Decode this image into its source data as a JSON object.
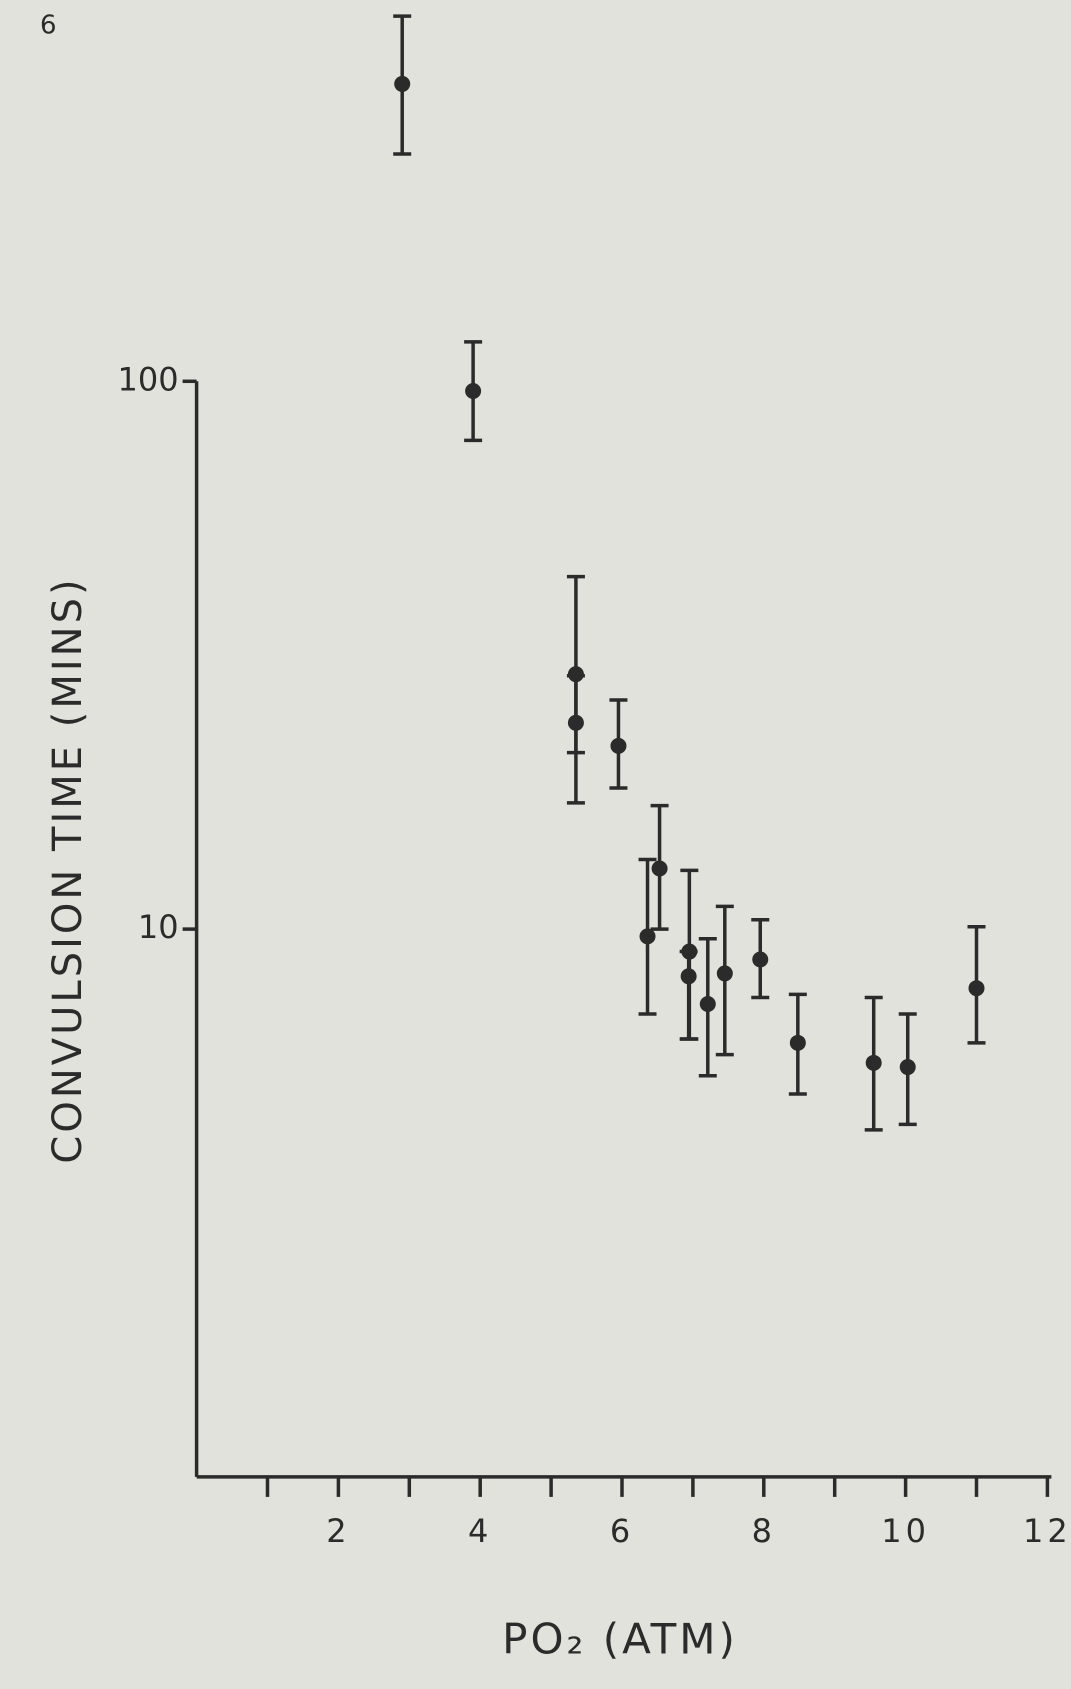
{
  "page_number": "6",
  "chart_data": {
    "type": "errorbar-scatter",
    "ylabel": "CONVULSION TIME (MINS)",
    "xlabel": "PO₂ (ATM)",
    "x": [
      2.9,
      3.9,
      5.35,
      5.35,
      5.95,
      6.36,
      6.53,
      6.95,
      6.94,
      7.21,
      7.45,
      7.95,
      8.48,
      9.55,
      10.03,
      11.0
    ],
    "values": [
      349,
      96,
      29.2,
      23.8,
      21.6,
      9.7,
      12.9,
      9.1,
      8.2,
      7.3,
      8.3,
      8.8,
      6.2,
      5.7,
      5.6,
      7.8
    ],
    "err_low": [
      260,
      78,
      21,
      17,
      18.1,
      7.0,
      10,
      6.3,
      6.3,
      5.4,
      5.9,
      7.5,
      5.0,
      4.3,
      4.4,
      6.2
    ],
    "err_high": [
      464,
      118,
      44,
      29,
      26.2,
      13.4,
      16.8,
      12.8,
      9.1,
      9.6,
      11.0,
      10.4,
      7.6,
      7.5,
      7.0,
      10.1
    ],
    "color": "#2b2b2b",
    "log_y": true,
    "xlim": [
      0,
      12
    ],
    "ylim": [
      1,
      500
    ],
    "xticks": [
      2,
      4,
      6,
      8,
      10,
      12
    ],
    "xminor_ticks": [
      1,
      3,
      5,
      7,
      9,
      11
    ],
    "yticks": [
      10,
      100
    ]
  }
}
